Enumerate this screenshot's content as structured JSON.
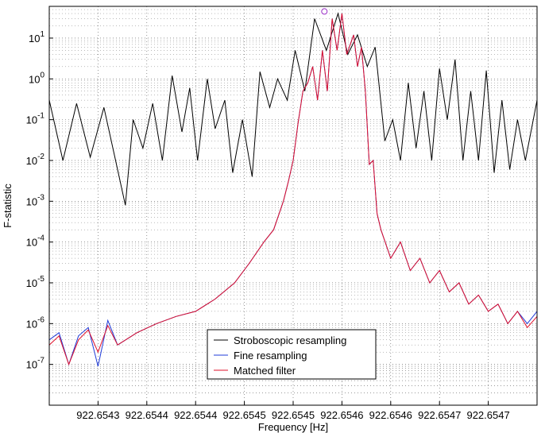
{
  "chart_data": {
    "type": "line",
    "xlabel": "Frequency [Hz]",
    "ylabel": "F-statistic",
    "yscale": "log",
    "ylim": [
      1e-08,
      60
    ],
    "xlim": [
      922.65425,
      922.65475
    ],
    "grid": true,
    "legend_position": "bottom-right",
    "x_tick_labels": [
      "922.6543",
      "922.6544",
      "922.6544",
      "922.6545",
      "922.6545",
      "922.6546",
      "922.6546",
      "922.6547",
      "922.6547"
    ],
    "y_ticks": [
      {
        "base": "10",
        "exp": "1"
      },
      {
        "base": "10",
        "exp": "0"
      },
      {
        "base": "10",
        "exp": "-1"
      },
      {
        "base": "10",
        "exp": "-2"
      },
      {
        "base": "10",
        "exp": "-3"
      },
      {
        "base": "10",
        "exp": "-4"
      },
      {
        "base": "10",
        "exp": "-5"
      },
      {
        "base": "10",
        "exp": "-6"
      },
      {
        "base": "10",
        "exp": "-7"
      }
    ],
    "series": [
      {
        "name": "Stroboscopic resampling",
        "color": "#000000",
        "x": [
          922.65425,
          922.654264,
          922.654278,
          922.654292,
          922.654306,
          922.654318,
          922.654328,
          922.654336,
          922.654346,
          922.654356,
          922.654366,
          922.654376,
          922.654386,
          922.654394,
          922.654402,
          922.654412,
          922.65442,
          922.65443,
          922.654438,
          922.654448,
          922.654458,
          922.654466,
          922.654476,
          922.654484,
          922.654494,
          922.654502,
          922.654512,
          922.654522,
          922.654534,
          922.654546,
          922.654556,
          922.654566,
          922.654576,
          922.654584,
          922.654594,
          922.654602,
          922.65461,
          922.654618,
          922.654626,
          922.654634,
          922.654642,
          922.65465,
          922.654658,
          922.654666,
          922.654674,
          922.654682,
          922.65469,
          922.654698,
          922.654706,
          922.654714,
          922.654722,
          922.65473,
          922.654738,
          922.65475
        ],
        "y": [
          0.3,
          0.01,
          0.25,
          0.012,
          0.2,
          0.01,
          0.0008,
          0.1,
          0.02,
          0.25,
          0.01,
          1.2,
          0.05,
          0.6,
          0.01,
          1.0,
          0.06,
          0.3,
          0.005,
          0.1,
          0.004,
          1.5,
          0.2,
          1.0,
          0.3,
          5,
          0.5,
          30,
          5,
          40,
          4,
          12,
          2,
          6,
          0.03,
          0.1,
          0.01,
          0.8,
          0.02,
          0.5,
          0.01,
          1.8,
          0.1,
          3,
          0.01,
          0.5,
          0.01,
          1.6,
          0.005,
          0.3,
          0.006,
          0.1,
          0.01,
          0.3
        ]
      },
      {
        "name": "Fine resampling",
        "color": "#1f3bd9",
        "x": [
          922.65425,
          922.65426,
          922.65427,
          922.65428,
          922.65429,
          922.6543,
          922.65431,
          922.65432,
          922.65434,
          922.65436,
          922.65438,
          922.6544,
          922.65442,
          922.65444,
          922.654455,
          922.65447,
          922.65448,
          922.65449,
          922.654495,
          922.6545,
          922.654505,
          922.65451,
          922.654515,
          922.65452,
          922.654525,
          922.65453,
          922.654535,
          922.65454,
          922.654545,
          922.65455,
          922.654555,
          922.654562,
          922.654566,
          922.65457,
          922.654574,
          922.654578,
          922.654582,
          922.654586,
          922.65459,
          922.6546,
          922.65461,
          922.65462,
          922.65463,
          922.65464,
          922.65465,
          922.65466,
          922.65467,
          922.65468,
          922.65469,
          922.6547,
          922.65471,
          922.65472,
          922.65473,
          922.65474,
          922.65475
        ],
        "y": [
          4e-07,
          6e-07,
          1e-07,
          5e-07,
          8e-07,
          9e-08,
          1.2e-06,
          3e-07,
          6e-07,
          1e-06,
          1.5e-06,
          2e-06,
          4e-06,
          1e-05,
          3e-05,
          0.0001,
          0.0002,
          0.001,
          0.003,
          0.01,
          0.08,
          0.5,
          0.8,
          2,
          0.3,
          5,
          0.5,
          30,
          5,
          40,
          4,
          12,
          2,
          6,
          0.5,
          0.008,
          0.01,
          0.0005,
          0.0002,
          4e-05,
          0.0001,
          2e-05,
          4e-05,
          1e-05,
          2e-05,
          6e-06,
          1e-05,
          3e-06,
          5e-06,
          2e-06,
          3e-06,
          1e-06,
          2e-06,
          1e-06,
          2e-06
        ]
      },
      {
        "name": "Matched filter",
        "color": "#e0102a",
        "x": [
          922.65425,
          922.65426,
          922.65427,
          922.65428,
          922.65429,
          922.6543,
          922.65431,
          922.65432,
          922.65434,
          922.65436,
          922.65438,
          922.6544,
          922.65442,
          922.65444,
          922.654455,
          922.65447,
          922.65448,
          922.65449,
          922.654495,
          922.6545,
          922.654505,
          922.65451,
          922.654515,
          922.65452,
          922.654525,
          922.65453,
          922.654535,
          922.65454,
          922.654545,
          922.65455,
          922.654555,
          922.654562,
          922.654566,
          922.65457,
          922.654574,
          922.654578,
          922.654582,
          922.654586,
          922.65459,
          922.6546,
          922.65461,
          922.65462,
          922.65463,
          922.65464,
          922.65465,
          922.65466,
          922.65467,
          922.65468,
          922.65469,
          922.6547,
          922.65471,
          922.65472,
          922.65473,
          922.65474,
          922.65475
        ],
        "y": [
          3e-07,
          5e-07,
          1e-07,
          4e-07,
          7e-07,
          2e-07,
          9e-07,
          3e-07,
          6e-07,
          1e-06,
          1.5e-06,
          2e-06,
          4e-06,
          1e-05,
          3e-05,
          0.0001,
          0.0002,
          0.001,
          0.003,
          0.01,
          0.08,
          0.5,
          0.8,
          2,
          0.3,
          5,
          0.5,
          30,
          5,
          40,
          4,
          12,
          2,
          6,
          0.5,
          0.008,
          0.01,
          0.0005,
          0.0002,
          4e-05,
          0.0001,
          2e-05,
          4e-05,
          1e-05,
          2e-05,
          6e-06,
          1e-05,
          3e-06,
          5e-06,
          2e-06,
          3e-06,
          1e-06,
          2e-06,
          8e-07,
          1.5e-06
        ]
      }
    ],
    "marker": {
      "x": 922.654532,
      "y": 45,
      "color": "#9b30c8"
    }
  }
}
